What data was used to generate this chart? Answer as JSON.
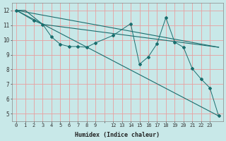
{
  "xlabel": "Humidex (Indice chaleur)",
  "bg_color": "#c8e8e8",
  "grid_color": "#e8a0a0",
  "line_color": "#1a6e6e",
  "xlim": [
    -0.5,
    23.5
  ],
  "ylim": [
    4.5,
    12.5
  ],
  "yticks": [
    5,
    6,
    7,
    8,
    9,
    10,
    11,
    12
  ],
  "xtick_labels": [
    "0",
    "1",
    "2",
    "3",
    "4",
    "5",
    "6",
    "7",
    "8",
    "9",
    "",
    "12",
    "13",
    "14",
    "15",
    "16",
    "17",
    "18",
    "19",
    "20",
    "21",
    "22",
    "23"
  ],
  "line1_nomarker": [
    [
      0,
      12
    ],
    [
      23,
      9.5
    ]
  ],
  "line2_nomarker": [
    [
      0,
      12
    ],
    [
      1,
      12
    ],
    [
      3,
      11.05
    ],
    [
      23,
      9.5
    ]
  ],
  "line3_markers": [
    [
      0,
      12
    ],
    [
      2,
      11.3
    ],
    [
      3,
      11.05
    ],
    [
      4,
      10.2
    ],
    [
      5,
      9.7
    ],
    [
      6,
      9.55
    ],
    [
      7,
      9.55
    ],
    [
      8,
      9.5
    ],
    [
      9,
      9.8
    ],
    [
      11,
      10.3
    ],
    [
      13,
      11.1
    ],
    [
      14,
      8.35
    ],
    [
      15,
      8.85
    ],
    [
      16,
      9.75
    ],
    [
      17,
      11.5
    ],
    [
      18,
      9.85
    ],
    [
      19,
      9.5
    ],
    [
      20,
      8.05
    ],
    [
      21,
      7.35
    ],
    [
      22,
      6.75
    ],
    [
      23,
      4.85
    ]
  ],
  "line4_long": [
    [
      0,
      12
    ],
    [
      23,
      4.85
    ]
  ]
}
